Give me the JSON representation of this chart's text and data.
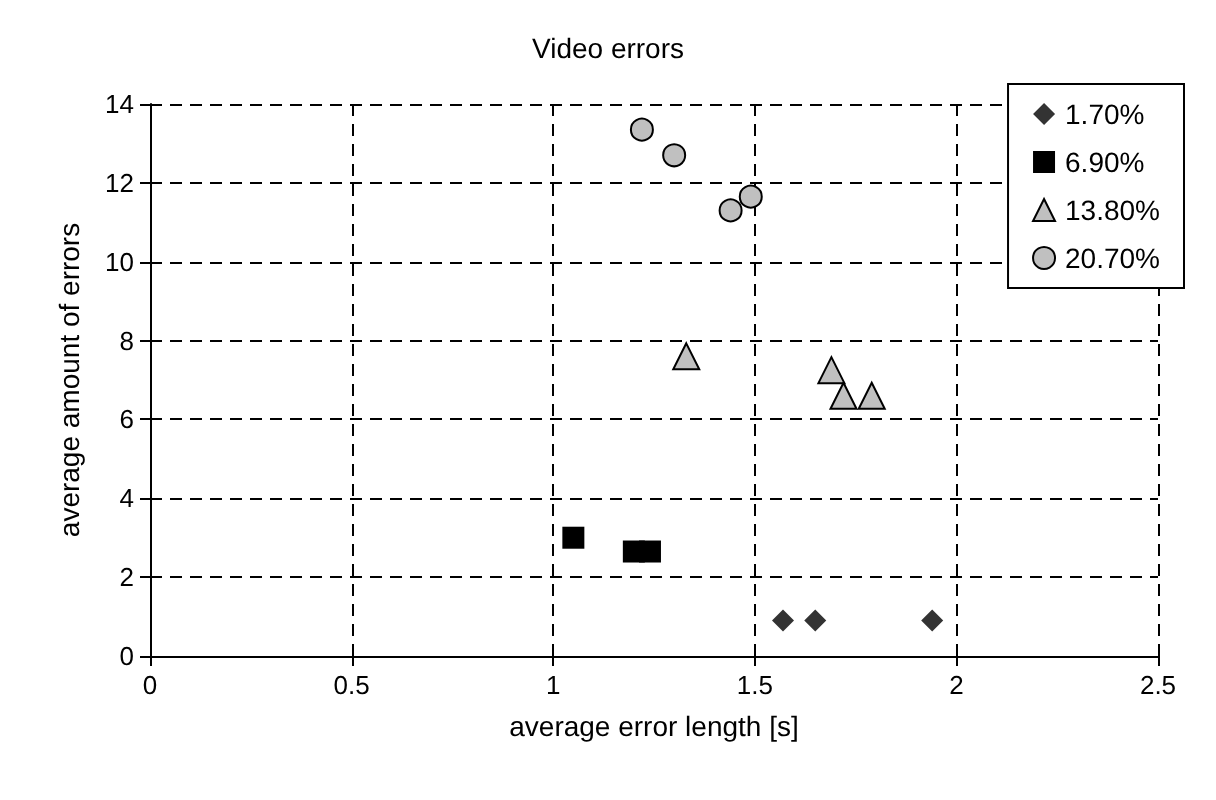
{
  "chart_data": {
    "type": "scatter",
    "title": "Video errors",
    "xlabel": "average error length [s]",
    "ylabel": "average amount of errors",
    "xlim": [
      0,
      2.5
    ],
    "xticks": [
      0,
      0.5,
      1,
      1.5,
      2,
      2.5
    ],
    "ylim": [
      0,
      14
    ],
    "yticks": [
      0,
      2,
      4,
      6,
      8,
      10,
      12,
      14
    ],
    "grid": true,
    "legend": "top right",
    "series": [
      {
        "name": "1.70%",
        "color": "#333333",
        "marker": "diamond",
        "x": [
          1.57,
          1.65,
          1.94
        ],
        "values": [
          0.9,
          0.9,
          0.9
        ]
      },
      {
        "name": "6.90%",
        "color": "#000000",
        "marker": "square",
        "x": [
          1.05,
          1.2,
          1.24
        ],
        "values": [
          3.0,
          2.65,
          2.65
        ]
      },
      {
        "name": "13.80%",
        "color": "#c0c0c0",
        "marker": "triangle",
        "x": [
          1.33,
          1.69,
          1.72,
          1.79
        ],
        "values": [
          7.6,
          7.25,
          6.6,
          6.6
        ]
      },
      {
        "name": "20.70%",
        "color": "#c0c0c0",
        "marker": "circle",
        "x": [
          1.22,
          1.3,
          1.44,
          1.49
        ],
        "values": [
          13.35,
          12.7,
          11.3,
          11.65
        ]
      }
    ]
  }
}
